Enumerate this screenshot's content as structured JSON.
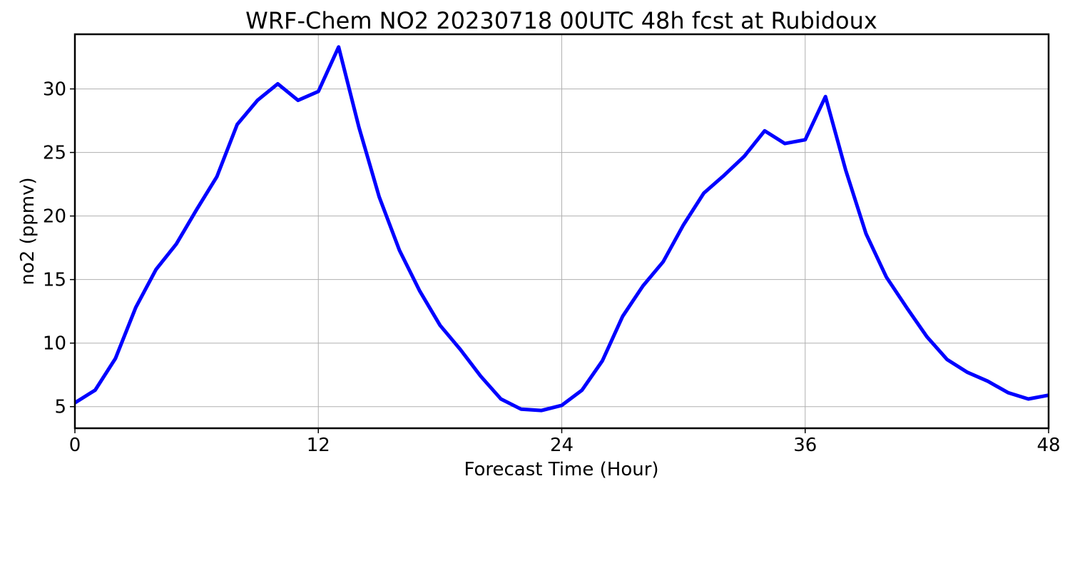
{
  "chart_data": {
    "type": "line",
    "title": "WRF-Chem NO2  20230718 00UTC 48h fcst at Rubidoux",
    "xlabel": "Forecast Time (Hour)",
    "ylabel": "no2  (ppmv)",
    "xlim": [
      0,
      48
    ],
    "ylim": [
      3.3,
      34.3
    ],
    "xticks": [
      0,
      12,
      24,
      36,
      48
    ],
    "yticks": [
      5,
      10,
      15,
      20,
      25,
      30
    ],
    "grid": true,
    "series": [
      {
        "color": "#0000ff",
        "x": [
          0,
          1,
          2,
          3,
          4,
          5,
          6,
          7,
          8,
          9,
          10,
          11,
          12,
          13,
          14,
          15,
          16,
          17,
          18,
          19,
          20,
          21,
          22,
          23,
          24,
          25,
          26,
          27,
          28,
          29,
          30,
          31,
          32,
          33,
          34,
          35,
          36,
          37,
          38,
          39,
          40,
          41,
          42,
          43,
          44,
          45,
          46,
          47,
          48
        ],
        "y": [
          5.3,
          6.3,
          8.8,
          12.8,
          15.8,
          17.8,
          20.5,
          23.1,
          27.2,
          29.1,
          30.4,
          29.1,
          29.8,
          33.3,
          27.0,
          21.5,
          17.3,
          14.1,
          11.4,
          9.5,
          7.4,
          5.6,
          4.8,
          4.7,
          5.1,
          6.3,
          8.6,
          12.1,
          14.5,
          16.4,
          19.3,
          21.8,
          23.2,
          24.7,
          26.7,
          25.7,
          26.0,
          29.4,
          23.6,
          18.6,
          15.2,
          12.8,
          10.5,
          8.7,
          7.7,
          7.0,
          6.1,
          5.6,
          5.9
        ]
      }
    ]
  }
}
